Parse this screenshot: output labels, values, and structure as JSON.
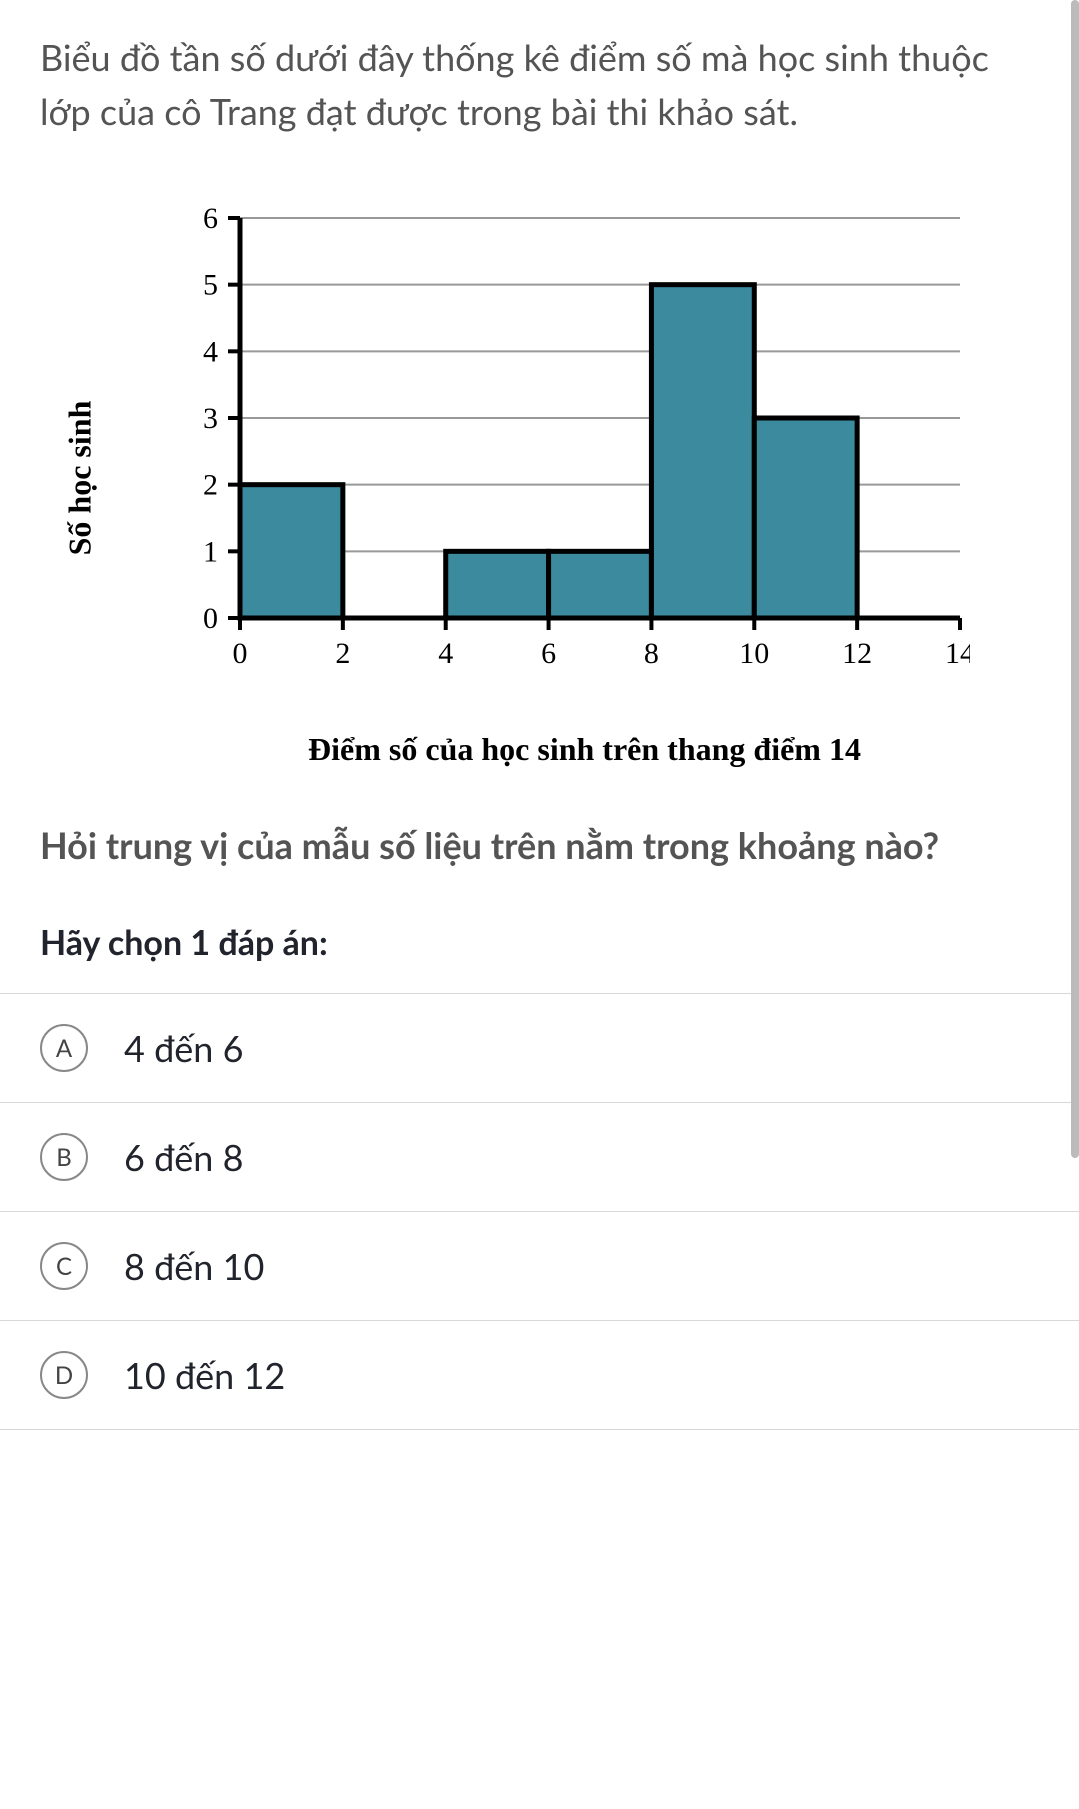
{
  "question": "Biểu đồ tần số dưới đây thống kê điểm số mà học sinh thuộc lớp của cô Trang đạt được trong bài thi khảo sát.",
  "chart": {
    "type": "histogram",
    "y_label": "Số học sinh",
    "x_label": "Điểm số của học sinh trên thang điểm 14",
    "xlim": [
      0,
      14
    ],
    "ylim": [
      0,
      6
    ],
    "x_ticks": [
      0,
      2,
      4,
      6,
      8,
      10,
      12,
      14
    ],
    "y_ticks": [
      0,
      1,
      2,
      3,
      4,
      5,
      6
    ],
    "grid_color": "#999999",
    "axis_color": "#000000",
    "bar_fill": "#3b8a9e",
    "bar_stroke": "#000000",
    "background_color": "#ffffff",
    "bars": [
      {
        "x0": 0,
        "x1": 2,
        "value": 2
      },
      {
        "x0": 4,
        "x1": 6,
        "value": 1
      },
      {
        "x0": 6,
        "x1": 8,
        "value": 1
      },
      {
        "x0": 8,
        "x1": 10,
        "value": 5
      },
      {
        "x0": 10,
        "x1": 12,
        "value": 3
      }
    ],
    "tick_fontsize": 30,
    "label_fontsize": 32
  },
  "followup": "Hỏi trung vị của mẫu số liệu trên nằm trong khoảng nào?",
  "instruction": "Hãy chọn 1 đáp án:",
  "choices": [
    {
      "letter": "A",
      "text": "4 đến 6"
    },
    {
      "letter": "B",
      "text": "6 đến 8"
    },
    {
      "letter": "C",
      "text": "8 đến 10"
    },
    {
      "letter": "D",
      "text": "10 đến 12"
    }
  ]
}
